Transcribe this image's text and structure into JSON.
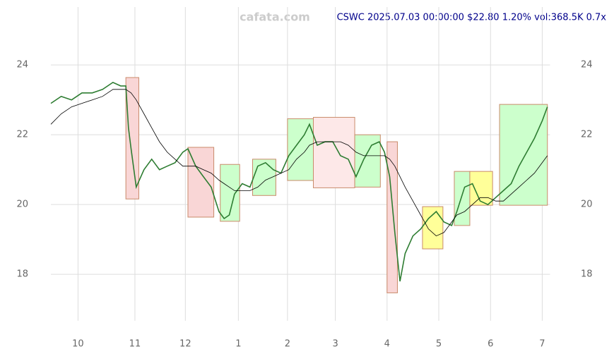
{
  "chart_data": {
    "type": "line",
    "title": "CSWC 2025.07.03 00:00:00 $22.80 1.20% vol:368.5K 0.7x",
    "watermark": "cafata.com",
    "x": [
      0,
      4,
      8,
      12,
      16,
      20,
      24,
      27,
      29,
      30,
      31,
      33,
      36,
      39,
      42,
      45,
      48,
      51,
      53,
      56,
      59,
      62,
      65,
      67,
      69,
      71,
      74,
      77,
      80,
      83,
      86,
      89,
      92,
      95,
      98,
      100,
      103,
      106,
      109,
      112,
      115,
      118,
      121,
      124,
      127,
      129,
      131,
      133,
      135,
      137,
      140,
      143,
      146,
      149,
      152,
      155,
      157,
      160,
      163,
      166,
      169,
      172,
      175,
      178,
      181,
      184,
      187,
      190,
      192
    ],
    "series": [
      {
        "color": "#2e7d32",
        "values": [
          22.9,
          23.1,
          23.0,
          23.2,
          23.2,
          23.3,
          23.5,
          23.4,
          23.4,
          22.2,
          21.6,
          20.5,
          21.0,
          21.3,
          21.0,
          21.1,
          21.2,
          21.5,
          21.6,
          21.1,
          20.8,
          20.5,
          19.8,
          19.6,
          19.7,
          20.3,
          20.6,
          20.5,
          21.1,
          21.2,
          21.0,
          20.9,
          21.4,
          21.7,
          22.0,
          22.3,
          21.7,
          21.8,
          21.8,
          21.4,
          21.3,
          20.8,
          21.3,
          21.7,
          21.8,
          21.5,
          20.8,
          19.2,
          17.8,
          18.6,
          19.1,
          19.3,
          19.6,
          19.8,
          19.5,
          19.4,
          19.8,
          20.5,
          20.6,
          20.1,
          20.0,
          20.2,
          20.4,
          20.6,
          21.1,
          21.5,
          21.9,
          22.4,
          22.8
        ]
      },
      {
        "color": "#000000",
        "values": [
          22.3,
          22.6,
          22.8,
          22.9,
          23.0,
          23.1,
          23.3,
          23.3,
          23.3,
          23.25,
          23.2,
          23.0,
          22.6,
          22.2,
          21.8,
          21.5,
          21.3,
          21.1,
          21.1,
          21.1,
          21.0,
          20.9,
          20.7,
          20.6,
          20.5,
          20.4,
          20.4,
          20.4,
          20.5,
          20.7,
          20.8,
          20.9,
          21.0,
          21.3,
          21.5,
          21.7,
          21.8,
          21.8,
          21.8,
          21.8,
          21.7,
          21.5,
          21.4,
          21.4,
          21.4,
          21.4,
          21.3,
          21.1,
          20.8,
          20.5,
          20.1,
          19.7,
          19.3,
          19.1,
          19.2,
          19.5,
          19.7,
          19.8,
          20.0,
          20.2,
          20.2,
          20.1,
          20.1,
          20.3,
          20.5,
          20.7,
          20.9,
          21.2,
          21.4
        ]
      }
    ],
    "boxes": [
      {
        "x0": 29,
        "x1": 34,
        "y0": 20.16,
        "y1": 23.64,
        "color": "#f9d6d6"
      },
      {
        "x0": 53,
        "x1": 63,
        "y0": 19.64,
        "y1": 21.64,
        "color": "#f9d6d6"
      },
      {
        "x0": 65.5,
        "x1": 73,
        "y0": 19.52,
        "y1": 21.15,
        "color": "#ccffcc"
      },
      {
        "x0": 78,
        "x1": 87,
        "y0": 20.26,
        "y1": 21.3,
        "color": "#ccffcc"
      },
      {
        "x0": 91.5,
        "x1": 101.5,
        "y0": 20.69,
        "y1": 22.46,
        "color": "#ccffcc"
      },
      {
        "x0": 101.5,
        "x1": 117.5,
        "y0": 20.48,
        "y1": 22.5,
        "color": "#fde8e8"
      },
      {
        "x0": 117.5,
        "x1": 127.4,
        "y0": 20.5,
        "y1": 22.0,
        "color": "#ccffcc"
      },
      {
        "x0": 130,
        "x1": 134,
        "y0": 17.47,
        "y1": 21.8,
        "color": "#f9d6d6"
      },
      {
        "x0": 143.7,
        "x1": 151.6,
        "y0": 18.73,
        "y1": 19.94,
        "color": "#ffff99"
      },
      {
        "x0": 156,
        "x1": 162,
        "y0": 19.4,
        "y1": 20.95,
        "color": "#ccffcc"
      },
      {
        "x0": 162,
        "x1": 170.8,
        "y0": 19.98,
        "y1": 20.95,
        "color": "#ffff99"
      },
      {
        "x0": 173.5,
        "x1": 192,
        "y0": 19.98,
        "y1": 22.87,
        "color": "#ccffcc"
      }
    ],
    "xlim": [
      0,
      193
    ],
    "ylim": [
      16.67,
      25.66
    ],
    "xticks": [
      {
        "value": 10.5,
        "label": "10"
      },
      {
        "value": 32.5,
        "label": "11"
      },
      {
        "value": 52,
        "label": "12"
      },
      {
        "value": 72.5,
        "label": "1"
      },
      {
        "value": 91.5,
        "label": "2"
      },
      {
        "value": 110,
        "label": "3"
      },
      {
        "value": 130,
        "label": "4"
      },
      {
        "value": 150,
        "label": "5"
      },
      {
        "value": 170,
        "label": "6"
      },
      {
        "value": 190,
        "label": "7"
      }
    ],
    "yticks": [
      18,
      20,
      22,
      24
    ],
    "grid": true
  }
}
